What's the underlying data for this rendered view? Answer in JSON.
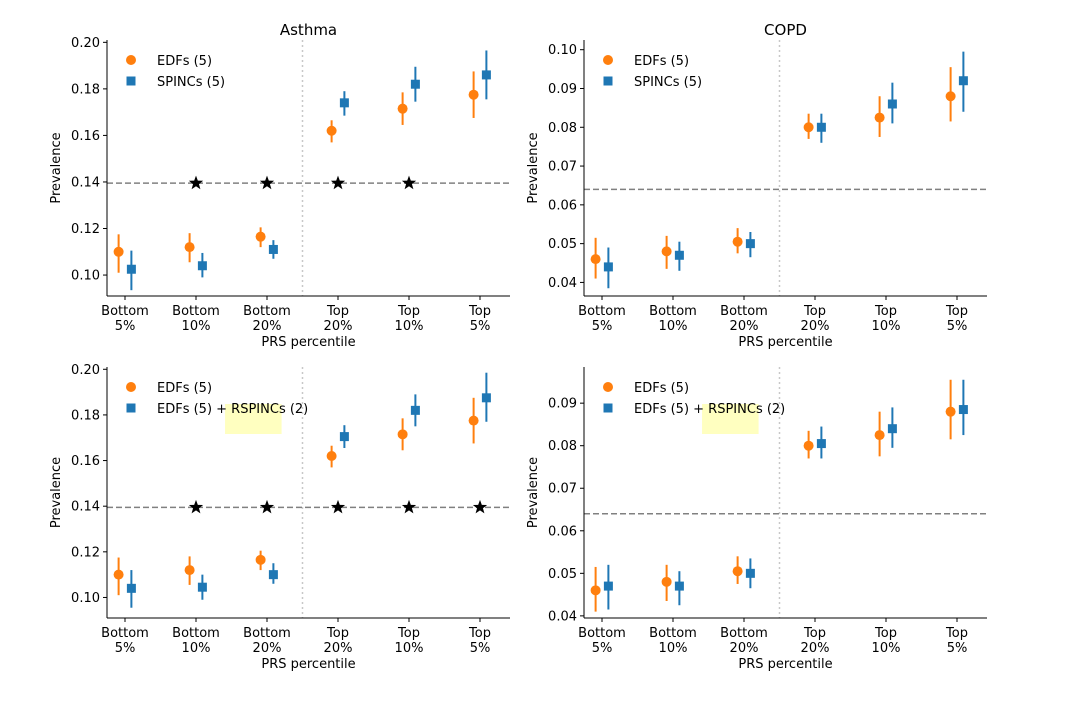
{
  "chart_data": [
    {
      "type": "scatter",
      "panel": "top-left",
      "title": "Asthma",
      "xlabel": "PRS percentile",
      "ylabel": "Prevalence",
      "categories": [
        [
          "Bottom",
          "5%"
        ],
        [
          "Bottom",
          "10%"
        ],
        [
          "Bottom",
          "20%"
        ],
        [
          "Top",
          "20%"
        ],
        [
          "Top",
          "10%"
        ],
        [
          "Top",
          "5%"
        ]
      ],
      "ylim": [
        0.091,
        0.201
      ],
      "yticks": [
        0.1,
        0.12,
        0.14,
        0.16,
        0.18,
        0.2
      ],
      "ytick_labels": [
        "0.10",
        "0.12",
        "0.14",
        "0.16",
        "0.18",
        "0.20"
      ],
      "reference_line": 0.1395,
      "legend": {
        "position": "top-left",
        "highlight": null
      },
      "series": [
        {
          "name": "EDFs (5)",
          "marker": "circle",
          "color": "#ff7f0e",
          "offset": -0.09,
          "values": [
            0.11,
            0.112,
            0.1165,
            0.162,
            0.1715,
            0.1775
          ],
          "lower": [
            0.101,
            0.1055,
            0.112,
            0.157,
            0.1645,
            0.1675
          ],
          "upper": [
            0.1175,
            0.118,
            0.1205,
            0.1665,
            0.1785,
            0.1875
          ]
        },
        {
          "name": "SPINCs (5)",
          "marker": "square",
          "color": "#1f77b4",
          "offset": 0.09,
          "values": [
            0.1025,
            0.104,
            0.111,
            0.174,
            0.182,
            0.186
          ],
          "lower": [
            0.0935,
            0.099,
            0.107,
            0.1685,
            0.1745,
            0.1755
          ],
          "upper": [
            0.1105,
            0.1095,
            0.115,
            0.179,
            0.1895,
            0.1965
          ]
        }
      ],
      "stars": [
        1,
        2,
        3,
        4
      ]
    },
    {
      "type": "scatter",
      "panel": "top-right",
      "title": "COPD",
      "xlabel": "PRS percentile",
      "ylabel": "Prevalence",
      "categories": [
        [
          "Bottom",
          "5%"
        ],
        [
          "Bottom",
          "10%"
        ],
        [
          "Bottom",
          "20%"
        ],
        [
          "Top",
          "20%"
        ],
        [
          "Top",
          "10%"
        ],
        [
          "Top",
          "5%"
        ]
      ],
      "ylim": [
        0.0365,
        0.1025
      ],
      "yticks": [
        0.04,
        0.05,
        0.06,
        0.07,
        0.08,
        0.09,
        0.1
      ],
      "ytick_labels": [
        "0.04",
        "0.05",
        "0.06",
        "0.07",
        "0.08",
        "0.09",
        "0.10"
      ],
      "reference_line": 0.064,
      "legend": {
        "position": "top-left",
        "highlight": null
      },
      "series": [
        {
          "name": "EDFs (5)",
          "marker": "circle",
          "color": "#ff7f0e",
          "offset": -0.09,
          "values": [
            0.046,
            0.048,
            0.0505,
            0.08,
            0.0825,
            0.088
          ],
          "lower": [
            0.041,
            0.0435,
            0.0475,
            0.077,
            0.0775,
            0.0815
          ],
          "upper": [
            0.0515,
            0.052,
            0.054,
            0.0835,
            0.088,
            0.0955
          ]
        },
        {
          "name": "SPINCs (5)",
          "marker": "square",
          "color": "#1f77b4",
          "offset": 0.09,
          "values": [
            0.044,
            0.047,
            0.05,
            0.08,
            0.086,
            0.092
          ],
          "lower": [
            0.0385,
            0.043,
            0.0465,
            0.076,
            0.081,
            0.084
          ],
          "upper": [
            0.049,
            0.0505,
            0.053,
            0.0835,
            0.0915,
            0.0995
          ]
        }
      ],
      "stars": []
    },
    {
      "type": "scatter",
      "panel": "bottom-left",
      "title": "",
      "xlabel": "PRS percentile",
      "ylabel": "Prevalence",
      "categories": [
        [
          "Bottom",
          "5%"
        ],
        [
          "Bottom",
          "10%"
        ],
        [
          "Bottom",
          "20%"
        ],
        [
          "Top",
          "20%"
        ],
        [
          "Top",
          "10%"
        ],
        [
          "Top",
          "5%"
        ]
      ],
      "ylim": [
        0.091,
        0.201
      ],
      "yticks": [
        0.1,
        0.12,
        0.14,
        0.16,
        0.18,
        0.2
      ],
      "ytick_labels": [
        "0.10",
        "0.12",
        "0.14",
        "0.16",
        "0.18",
        "0.20"
      ],
      "reference_line": 0.1395,
      "legend": {
        "position": "top-left",
        "highlight": "RSPINCs",
        "highlight_color": "#ffffc0"
      },
      "series": [
        {
          "name": "EDFs (5)",
          "marker": "circle",
          "color": "#ff7f0e",
          "offset": -0.09,
          "values": [
            0.11,
            0.112,
            0.1165,
            0.162,
            0.1715,
            0.1775
          ],
          "lower": [
            0.101,
            0.1055,
            0.112,
            0.157,
            0.1645,
            0.1675
          ],
          "upper": [
            0.1175,
            0.118,
            0.1205,
            0.1665,
            0.1785,
            0.1875
          ]
        },
        {
          "name": "EDFs (5) + RSPINCs (2)",
          "marker": "square",
          "color": "#1f77b4",
          "offset": 0.09,
          "values": [
            0.104,
            0.1045,
            0.11,
            0.1705,
            0.182,
            0.1875
          ],
          "lower": [
            0.0955,
            0.099,
            0.106,
            0.1655,
            0.175,
            0.177
          ],
          "upper": [
            0.112,
            0.11,
            0.115,
            0.1755,
            0.189,
            0.1985
          ]
        }
      ],
      "stars": [
        1,
        2,
        3,
        4,
        5
      ]
    },
    {
      "type": "scatter",
      "panel": "bottom-right",
      "title": "",
      "xlabel": "PRS percentile",
      "ylabel": "Prevalence",
      "categories": [
        [
          "Bottom",
          "5%"
        ],
        [
          "Bottom",
          "10%"
        ],
        [
          "Bottom",
          "20%"
        ],
        [
          "Top",
          "20%"
        ],
        [
          "Top",
          "10%"
        ],
        [
          "Top",
          "5%"
        ]
      ],
      "ylim": [
        0.0395,
        0.0985
      ],
      "yticks": [
        0.04,
        0.05,
        0.06,
        0.07,
        0.08,
        0.09
      ],
      "ytick_labels": [
        "0.04",
        "0.05",
        "0.06",
        "0.07",
        "0.08",
        "0.09"
      ],
      "reference_line": 0.064,
      "legend": {
        "position": "top-left",
        "highlight": "RSPINCs",
        "highlight_color": "#ffffc0"
      },
      "series": [
        {
          "name": "EDFs (5)",
          "marker": "circle",
          "color": "#ff7f0e",
          "offset": -0.09,
          "values": [
            0.046,
            0.048,
            0.0505,
            0.08,
            0.0825,
            0.088
          ],
          "lower": [
            0.041,
            0.0435,
            0.0475,
            0.077,
            0.0775,
            0.0815
          ],
          "upper": [
            0.0515,
            0.052,
            0.054,
            0.0835,
            0.088,
            0.0955
          ]
        },
        {
          "name": "EDFs (5) + RSPINCs (2)",
          "marker": "square",
          "color": "#1f77b4",
          "offset": 0.09,
          "values": [
            0.047,
            0.047,
            0.05,
            0.0805,
            0.084,
            0.0885
          ],
          "lower": [
            0.0415,
            0.0425,
            0.0465,
            0.077,
            0.0795,
            0.0825
          ],
          "upper": [
            0.052,
            0.0505,
            0.0535,
            0.0845,
            0.089,
            0.0955
          ]
        }
      ],
      "stars": []
    }
  ]
}
